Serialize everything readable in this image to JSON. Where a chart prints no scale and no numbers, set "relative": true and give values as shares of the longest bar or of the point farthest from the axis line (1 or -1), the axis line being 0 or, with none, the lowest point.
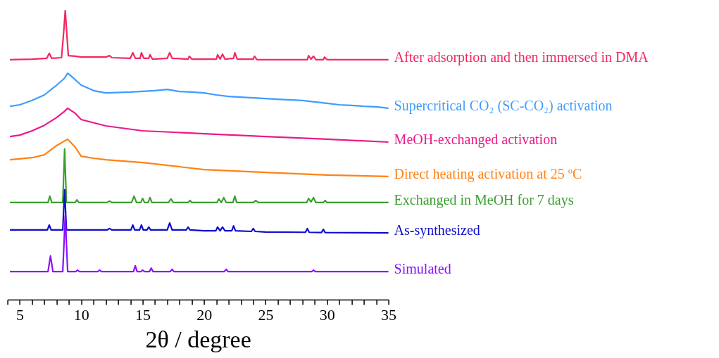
{
  "chart_data": {
    "type": "line",
    "relative": true,
    "xlabel": "2θ / degree",
    "xlim": [
      4,
      35
    ],
    "xticks": [
      {
        "value": 4,
        "label": null
      },
      5,
      {
        "value": 6,
        "label": null
      },
      {
        "value": 7,
        "label": null
      },
      {
        "value": 8,
        "label": null
      },
      {
        "value": 9,
        "label": null
      },
      10,
      {
        "value": 11,
        "label": null
      },
      {
        "value": 12,
        "label": null
      },
      {
        "value": 13,
        "label": null
      },
      {
        "value": 14,
        "label": null
      },
      15,
      {
        "value": 16,
        "label": null
      },
      {
        "value": 17,
        "label": null
      },
      {
        "value": 18,
        "label": null
      },
      {
        "value": 19,
        "label": null
      },
      20,
      {
        "value": 21,
        "label": null
      },
      {
        "value": 22,
        "label": null
      },
      {
        "value": 23,
        "label": null
      },
      {
        "value": 24,
        "label": null
      },
      25,
      {
        "value": 26,
        "label": null
      },
      {
        "value": 27,
        "label": null
      },
      {
        "value": 28,
        "label": null
      },
      {
        "value": 29,
        "label": null
      },
      30,
      {
        "value": 31,
        "label": null
      },
      {
        "value": 32,
        "label": null
      },
      {
        "value": 33,
        "label": null
      },
      {
        "value": 34,
        "label": null
      },
      35
    ],
    "grid": false,
    "marker": "none",
    "line_style": "solid",
    "series": [
      {
        "name": "After adsorption and then immersed in DMA",
        "color": "#f2295f",
        "x": [
          4.2,
          6,
          7.2,
          7.4,
          7.6,
          8.4,
          8.6,
          8.7,
          8.8,
          8.95,
          9.5,
          10,
          12,
          12.3,
          12.5,
          14,
          14.2,
          14.4,
          14.8,
          14.9,
          15.1,
          15.5,
          15.6,
          15.8,
          17,
          17.2,
          17.4,
          18.7,
          18.8,
          19,
          21,
          21.1,
          21.3,
          21.5,
          21.7,
          22.4,
          22.5,
          22.7,
          24,
          24.1,
          24.3,
          28.4,
          28.5,
          28.7,
          28.9,
          29.1,
          29.7,
          29.8,
          30,
          33,
          35
        ],
        "values": [
          0.83,
          0.832,
          0.835,
          0.852,
          0.835,
          0.837,
          0.939,
          1.0,
          0.939,
          0.844,
          0.842,
          0.839,
          0.839,
          0.844,
          0.837,
          0.835,
          0.854,
          0.835,
          0.835,
          0.854,
          0.835,
          0.835,
          0.847,
          0.832,
          0.835,
          0.854,
          0.835,
          0.832,
          0.842,
          0.832,
          0.832,
          0.847,
          0.832,
          0.849,
          0.832,
          0.835,
          0.854,
          0.832,
          0.832,
          0.842,
          0.83,
          0.83,
          0.844,
          0.832,
          0.842,
          0.83,
          0.83,
          0.839,
          0.83,
          0.83,
          0.83
        ]
      },
      {
        "name": "Supercritical CO₂ (SC-CO₂) activation",
        "color": "#3d9cff",
        "x": [
          4.2,
          5,
          6,
          7,
          8,
          8.6,
          8.9,
          9.3,
          10,
          11,
          12,
          14,
          16,
          17,
          18,
          19,
          20,
          21,
          22,
          24,
          26,
          28,
          29,
          30,
          31,
          32,
          33,
          34,
          35
        ],
        "values": [
          0.669,
          0.674,
          0.689,
          0.708,
          0.742,
          0.764,
          0.783,
          0.769,
          0.742,
          0.723,
          0.715,
          0.718,
          0.723,
          0.727,
          0.72,
          0.718,
          0.715,
          0.708,
          0.703,
          0.698,
          0.693,
          0.689,
          0.684,
          0.679,
          0.674,
          0.672,
          0.669,
          0.667,
          0.662
        ]
      },
      {
        "name": "MeOH-exchanged activation",
        "color": "#ea1a8a",
        "x": [
          4.2,
          5,
          6,
          7,
          8,
          8.6,
          8.9,
          9.5,
          10,
          12,
          15,
          20,
          25,
          30,
          35
        ],
        "values": [
          0.564,
          0.569,
          0.584,
          0.603,
          0.63,
          0.65,
          0.662,
          0.645,
          0.623,
          0.601,
          0.584,
          0.574,
          0.564,
          0.555,
          0.545
        ]
      },
      {
        "name": "Direct heating activation at 25 ºC",
        "color": "#ff8213",
        "x": [
          4.2,
          6,
          7,
          8,
          8.9,
          9.5,
          10,
          11,
          12,
          15,
          20,
          25,
          30,
          35
        ],
        "values": [
          0.484,
          0.491,
          0.501,
          0.533,
          0.555,
          0.528,
          0.496,
          0.489,
          0.484,
          0.474,
          0.45,
          0.44,
          0.431,
          0.426
        ]
      },
      {
        "name": "Exchanged in MeOH for 7 days",
        "color": "#3a9f2f",
        "x": [
          4.2,
          7.3,
          7.45,
          7.6,
          8.5,
          8.65,
          8.8,
          9.5,
          9.65,
          9.8,
          12.1,
          12.3,
          12.5,
          14.1,
          14.3,
          14.5,
          14.85,
          15.0,
          15.15,
          15.45,
          15.6,
          15.75,
          17.1,
          17.3,
          17.5,
          18.7,
          18.85,
          19.0,
          21.05,
          21.2,
          21.4,
          21.6,
          21.8,
          22.35,
          22.5,
          22.65,
          24.0,
          24.2,
          24.4,
          28.35,
          28.5,
          28.7,
          28.9,
          29.1,
          29.7,
          29.85,
          30.0,
          35
        ],
        "values": [
          0.336,
          0.336,
          0.358,
          0.336,
          0.336,
          0.521,
          0.336,
          0.336,
          0.345,
          0.336,
          0.336,
          0.341,
          0.336,
          0.336,
          0.358,
          0.336,
          0.336,
          0.35,
          0.336,
          0.336,
          0.353,
          0.336,
          0.336,
          0.348,
          0.336,
          0.336,
          0.343,
          0.336,
          0.336,
          0.348,
          0.336,
          0.353,
          0.336,
          0.336,
          0.358,
          0.336,
          0.336,
          0.343,
          0.336,
          0.336,
          0.35,
          0.338,
          0.353,
          0.336,
          0.336,
          0.343,
          0.336,
          0.336
        ]
      },
      {
        "name": "As-synthesized",
        "color": "#0e0ecc",
        "x": [
          4.2,
          7.25,
          7.4,
          7.55,
          8.5,
          8.65,
          8.8,
          12.1,
          12.3,
          12.5,
          14.05,
          14.2,
          14.35,
          14.75,
          14.9,
          15.05,
          15.35,
          15.5,
          15.65,
          17.0,
          17.2,
          17.4,
          18.55,
          18.7,
          18.85,
          20,
          20.95,
          21.1,
          21.3,
          21.5,
          21.7,
          22.25,
          22.4,
          22.55,
          23.85,
          24.0,
          24.15,
          25,
          28.25,
          28.4,
          28.55,
          29.55,
          29.7,
          29.85,
          35
        ],
        "values": [
          0.241,
          0.241,
          0.258,
          0.241,
          0.241,
          0.38,
          0.241,
          0.241,
          0.246,
          0.241,
          0.241,
          0.258,
          0.241,
          0.241,
          0.258,
          0.241,
          0.241,
          0.251,
          0.241,
          0.241,
          0.265,
          0.241,
          0.241,
          0.251,
          0.241,
          0.238,
          0.238,
          0.251,
          0.238,
          0.251,
          0.238,
          0.238,
          0.255,
          0.238,
          0.236,
          0.246,
          0.236,
          0.234,
          0.233,
          0.246,
          0.233,
          0.232,
          0.243,
          0.232,
          0.231
        ]
      },
      {
        "name": "Simulated",
        "color": "#8b10ff",
        "x": [
          4.2,
          7.3,
          7.5,
          7.7,
          8.5,
          8.7,
          8.9,
          9.55,
          9.7,
          9.85,
          11.35,
          11.5,
          11.65,
          14.25,
          14.4,
          14.55,
          14.85,
          15.0,
          15.15,
          15.55,
          15.7,
          15.85,
          17.25,
          17.4,
          17.55,
          21.65,
          21.8,
          21.95,
          28.75,
          28.9,
          29.05,
          35
        ],
        "values": [
          0.097,
          0.097,
          0.151,
          0.097,
          0.097,
          0.29,
          0.097,
          0.097,
          0.102,
          0.097,
          0.097,
          0.102,
          0.097,
          0.097,
          0.117,
          0.097,
          0.097,
          0.102,
          0.097,
          0.097,
          0.109,
          0.097,
          0.097,
          0.105,
          0.097,
          0.097,
          0.105,
          0.097,
          0.097,
          0.102,
          0.097,
          0.097
        ]
      }
    ]
  }
}
